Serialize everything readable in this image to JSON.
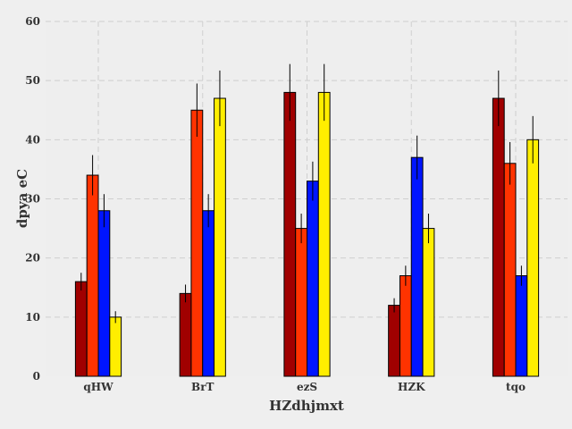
{
  "chart_data": {
    "type": "bar",
    "title": "",
    "xlabel": "HZdhjmxt",
    "ylabel": "dpya eC",
    "categories": [
      "qHW",
      "BrT",
      "ezS",
      "HZK",
      "tqo"
    ],
    "ylim": [
      0,
      60
    ],
    "yticks": [
      0,
      10,
      20,
      30,
      40,
      50,
      60
    ],
    "grid": true,
    "legend": "none",
    "background": "#eeeeee",
    "series": [
      {
        "color": "#a00000",
        "values": [
          16,
          14,
          48,
          12,
          47
        ],
        "errors": [
          1.5,
          1.5,
          4.8,
          1.2,
          4.7
        ]
      },
      {
        "color": "#ff3300",
        "values": [
          34,
          45,
          25,
          17,
          36
        ],
        "errors": [
          3.4,
          4.5,
          2.5,
          1.7,
          3.6
        ]
      },
      {
        "color": "#0015ff",
        "values": [
          28,
          28,
          33,
          37,
          17
        ],
        "errors": [
          2.8,
          2.8,
          3.3,
          3.7,
          1.7
        ]
      },
      {
        "color": "#ffee00",
        "values": [
          10,
          47,
          48,
          25,
          40
        ],
        "errors": [
          1.0,
          4.7,
          4.8,
          2.5,
          4.0
        ]
      }
    ]
  }
}
